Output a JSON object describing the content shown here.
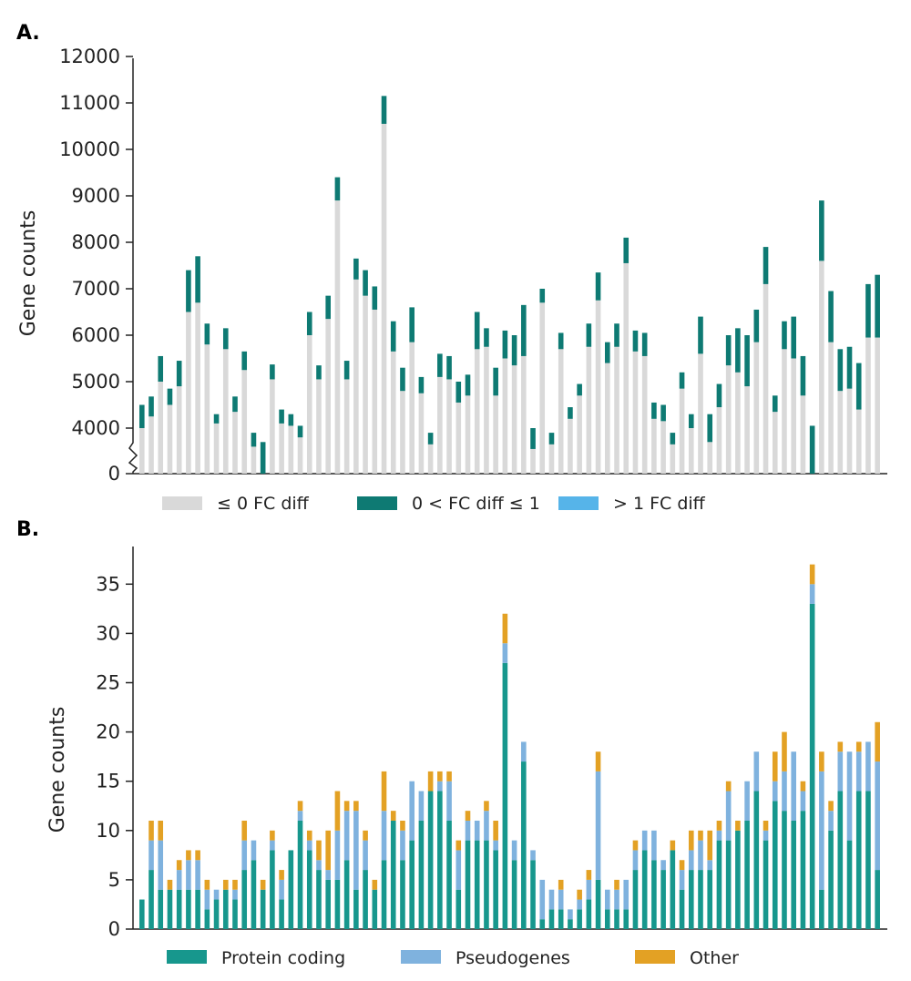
{
  "colors": {
    "grey": "#d9d9d9",
    "darkTeal": "#0e7a73",
    "lightBlue": "#56b4e9",
    "proteinTeal": "#17978d",
    "pseudoBlue": "#7fb2de",
    "otherOrange": "#e3a124"
  },
  "chart_data": [
    {
      "panel": "A.",
      "type": "bar",
      "stacked": true,
      "ylabel": "Gene counts",
      "ylim": [
        0,
        12000
      ],
      "y_axis_break": "between 0 and 4000 (data axis starts at 3500)",
      "yticks": [
        "0",
        "4000",
        "5000",
        "6000",
        "7000",
        "8000",
        "9000",
        "10000",
        "11000",
        "12000"
      ],
      "legend_position": "bottom",
      "series": [
        {
          "name": "≤ 0 FC diff",
          "color": "#d9d9d9",
          "values": [
            4000,
            4250,
            5000,
            4500,
            4900,
            6500,
            6700,
            5800,
            4100,
            5700,
            4350,
            5250,
            3600,
            3450,
            5050,
            4100,
            4050,
            3800,
            6000,
            5050,
            6350,
            8900,
            5050,
            7200,
            6850,
            6550,
            10550,
            5650,
            4800,
            5850,
            4750,
            3650,
            5100,
            5050,
            4550,
            4700,
            5700,
            5750,
            4700,
            5500,
            5350,
            5550,
            3550,
            6700,
            3650,
            5700,
            4200,
            4700,
            5750,
            6750,
            5400,
            5750,
            7550,
            5650,
            5550,
            4200,
            4150,
            3650,
            4850,
            4000,
            5600,
            3700,
            4450,
            5350,
            5200,
            4900,
            5850,
            7100,
            4350,
            5700,
            5500,
            4700,
            3500,
            7600,
            5850,
            4800,
            4850,
            4400,
            5950,
            5950
          ]
        },
        {
          "name": "0 < FC diff ≤ 1",
          "color": "#0e7a73",
          "values": [
            500,
            430,
            550,
            350,
            550,
            900,
            1000,
            450,
            200,
            450,
            330,
            400,
            300,
            250,
            320,
            300,
            250,
            250,
            500,
            300,
            500,
            500,
            400,
            450,
            550,
            500,
            600,
            650,
            500,
            750,
            350,
            250,
            500,
            500,
            450,
            450,
            800,
            400,
            600,
            600,
            650,
            1100,
            450,
            300,
            250,
            350,
            250,
            250,
            500,
            600,
            450,
            500,
            550,
            450,
            500,
            350,
            350,
            250,
            350,
            300,
            800,
            600,
            500,
            650,
            950,
            1100,
            700,
            800,
            350,
            600,
            900,
            850,
            550,
            1300,
            1100,
            900,
            900,
            1000,
            1150,
            1350
          ]
        },
        {
          "name": "> 1 FC diff",
          "color": "#56b4e9",
          "values": [
            0,
            0,
            0,
            0,
            0,
            0,
            0,
            0,
            0,
            0,
            0,
            0,
            0,
            0,
            0,
            0,
            0,
            0,
            0,
            0,
            0,
            0,
            0,
            0,
            0,
            0,
            0,
            0,
            0,
            0,
            0,
            0,
            0,
            0,
            0,
            0,
            0,
            0,
            0,
            0,
            0,
            0,
            0,
            0,
            0,
            0,
            0,
            0,
            0,
            0,
            0,
            0,
            0,
            0,
            0,
            0,
            0,
            0,
            0,
            0,
            0,
            0,
            0,
            0,
            0,
            0,
            0,
            0,
            0,
            0,
            0,
            0,
            0,
            0,
            0,
            0,
            0,
            0,
            0,
            0
          ]
        }
      ]
    },
    {
      "panel": "B.",
      "type": "bar",
      "stacked": true,
      "ylabel": "Gene counts",
      "ylim": [
        0,
        39
      ],
      "yticks": [
        "0",
        "5",
        "10",
        "15",
        "20",
        "25",
        "30",
        "35"
      ],
      "legend_position": "bottom",
      "series": [
        {
          "name": "Protein coding",
          "color": "#17978d",
          "values": [
            3,
            6,
            4,
            4,
            4,
            4,
            4,
            2,
            3,
            4,
            3,
            6,
            7,
            4,
            8,
            3,
            8,
            11,
            8,
            6,
            5,
            5,
            7,
            4,
            6,
            4,
            7,
            11,
            7,
            9,
            11,
            14,
            14,
            11,
            4,
            9,
            9,
            9,
            8,
            27,
            7,
            17,
            7,
            1,
            2,
            2,
            1,
            2,
            3,
            5,
            2,
            2,
            2,
            6,
            8,
            7,
            6,
            8,
            4,
            6,
            6,
            6,
            9,
            9,
            10,
            11,
            14,
            9,
            13,
            12,
            11,
            12,
            33,
            4,
            10,
            14,
            9,
            14,
            14,
            6
          ]
        },
        {
          "name": "Pseudogenes",
          "color": "#7fb2de",
          "values": [
            0,
            3,
            5,
            0,
            2,
            3,
            3,
            2,
            1,
            0,
            1,
            3,
            2,
            0,
            1,
            2,
            0,
            1,
            1,
            1,
            1,
            5,
            5,
            8,
            3,
            0,
            5,
            0,
            3,
            6,
            3,
            0,
            1,
            4,
            4,
            2,
            2,
            3,
            1,
            2,
            2,
            2,
            1,
            4,
            2,
            2,
            1,
            1,
            2,
            11,
            2,
            2,
            3,
            2,
            2,
            3,
            1,
            0,
            2,
            2,
            3,
            1,
            1,
            5,
            0,
            4,
            4,
            1,
            2,
            4,
            7,
            2,
            2,
            12,
            2,
            4,
            9,
            4,
            5,
            11
          ]
        },
        {
          "name": "Other",
          "color": "#e3a124",
          "values": [
            0,
            2,
            2,
            1,
            1,
            1,
            1,
            1,
            0,
            1,
            1,
            2,
            0,
            1,
            1,
            1,
            0,
            1,
            1,
            2,
            4,
            4,
            1,
            1,
            1,
            1,
            4,
            1,
            1,
            0,
            0,
            2,
            1,
            1,
            1,
            1,
            0,
            1,
            2,
            3,
            0,
            0,
            0,
            0,
            0,
            1,
            0,
            1,
            1,
            2,
            0,
            1,
            0,
            1,
            0,
            0,
            0,
            1,
            1,
            2,
            1,
            3,
            1,
            1,
            1,
            0,
            0,
            1,
            3,
            4,
            0,
            1,
            2,
            2,
            1,
            1,
            0,
            1,
            0,
            4
          ]
        }
      ]
    }
  ]
}
